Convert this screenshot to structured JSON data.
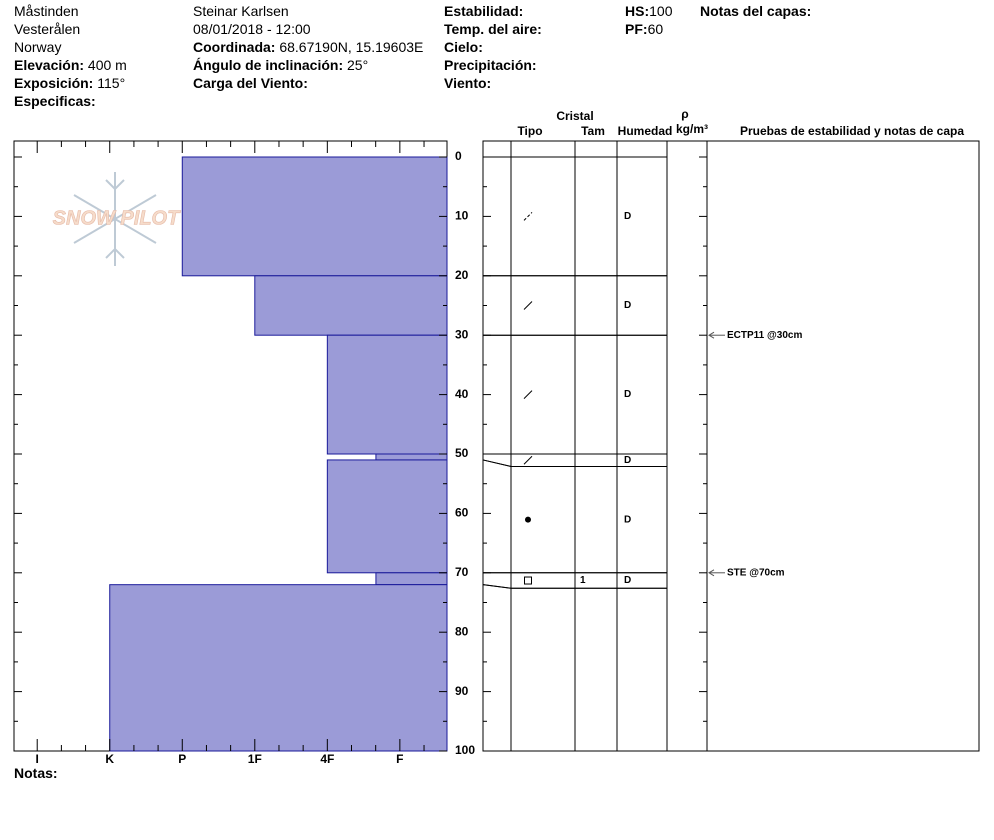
{
  "header": {
    "location": "Måstinden",
    "region": "Vesterålen",
    "country": "Norway",
    "elevation": {
      "label": "Elevación:",
      "value": "400 m"
    },
    "aspect": {
      "label": "Exposición:",
      "value": "115°"
    },
    "specifics": "Especificas:",
    "observer": "Steinar Karlsen",
    "datetime": "08/01/2018 - 12:00",
    "coordinates": {
      "label": "Coordinada:",
      "value": "68.67190N, 15.19603E"
    },
    "slope": {
      "label": "Ángulo de inclinación:",
      "value": "25°"
    },
    "wind_loading": "Carga del Viento:",
    "stability": "Estabilidad:",
    "air_temp": "Temp. del aire:",
    "sky": "Cielo:",
    "precipitation": "Precipitación:",
    "wind": "Viento:",
    "hs": {
      "label": "HS:",
      "value": "100"
    },
    "pf": {
      "label": "PF:",
      "value": "60"
    },
    "layer_notes": "Notas del capas:"
  },
  "notes": "Notas:",
  "logo": "SNOW PILOT",
  "table_headers": {
    "crystal": "Cristal",
    "type": "Tipo",
    "size": "Tam",
    "moisture": "Humedad",
    "density_symbol": "ρ",
    "density_unit": "kg/m³",
    "tests": "Pruebas de estabilidad y notas de capa"
  },
  "chart_data": {
    "type": "snow-profile",
    "color": "#9b9bd7",
    "ylim": [
      0,
      100
    ],
    "yticks": [
      0,
      10,
      20,
      30,
      40,
      50,
      60,
      70,
      80,
      90,
      100
    ],
    "xlim": [
      6.32,
      0.35
    ],
    "xticks": [
      {
        "value": 6,
        "label": "I"
      },
      {
        "value": 5,
        "label": "K"
      },
      {
        "value": 4,
        "label": "P"
      },
      {
        "value": 3,
        "label": "1F"
      },
      {
        "value": 2,
        "label": "4F"
      },
      {
        "value": 1,
        "label": "F"
      }
    ],
    "layers": [
      {
        "top": 0,
        "bottom": 20,
        "hardness": 4,
        "moisture": "D"
      },
      {
        "top": 20,
        "bottom": 30,
        "hardness": 3,
        "moisture": "D"
      },
      {
        "top": 30,
        "bottom": 50,
        "hardness": 2,
        "moisture": "D"
      },
      {
        "top": 50,
        "bottom": 51,
        "hardness": 1.33,
        "moisture": "D"
      },
      {
        "top": 51,
        "bottom": 70,
        "hardness": 2,
        "moisture": "D"
      },
      {
        "top": 70,
        "bottom": 72,
        "hardness": 1.33,
        "moisture": "D",
        "grain_size": 1
      },
      {
        "top": 72,
        "bottom": 100,
        "hardness": 5
      }
    ],
    "tests": [
      {
        "depth": 30,
        "label": "ECTP11 @30cm"
      },
      {
        "depth": 70,
        "label": "STE @70cm"
      }
    ]
  }
}
